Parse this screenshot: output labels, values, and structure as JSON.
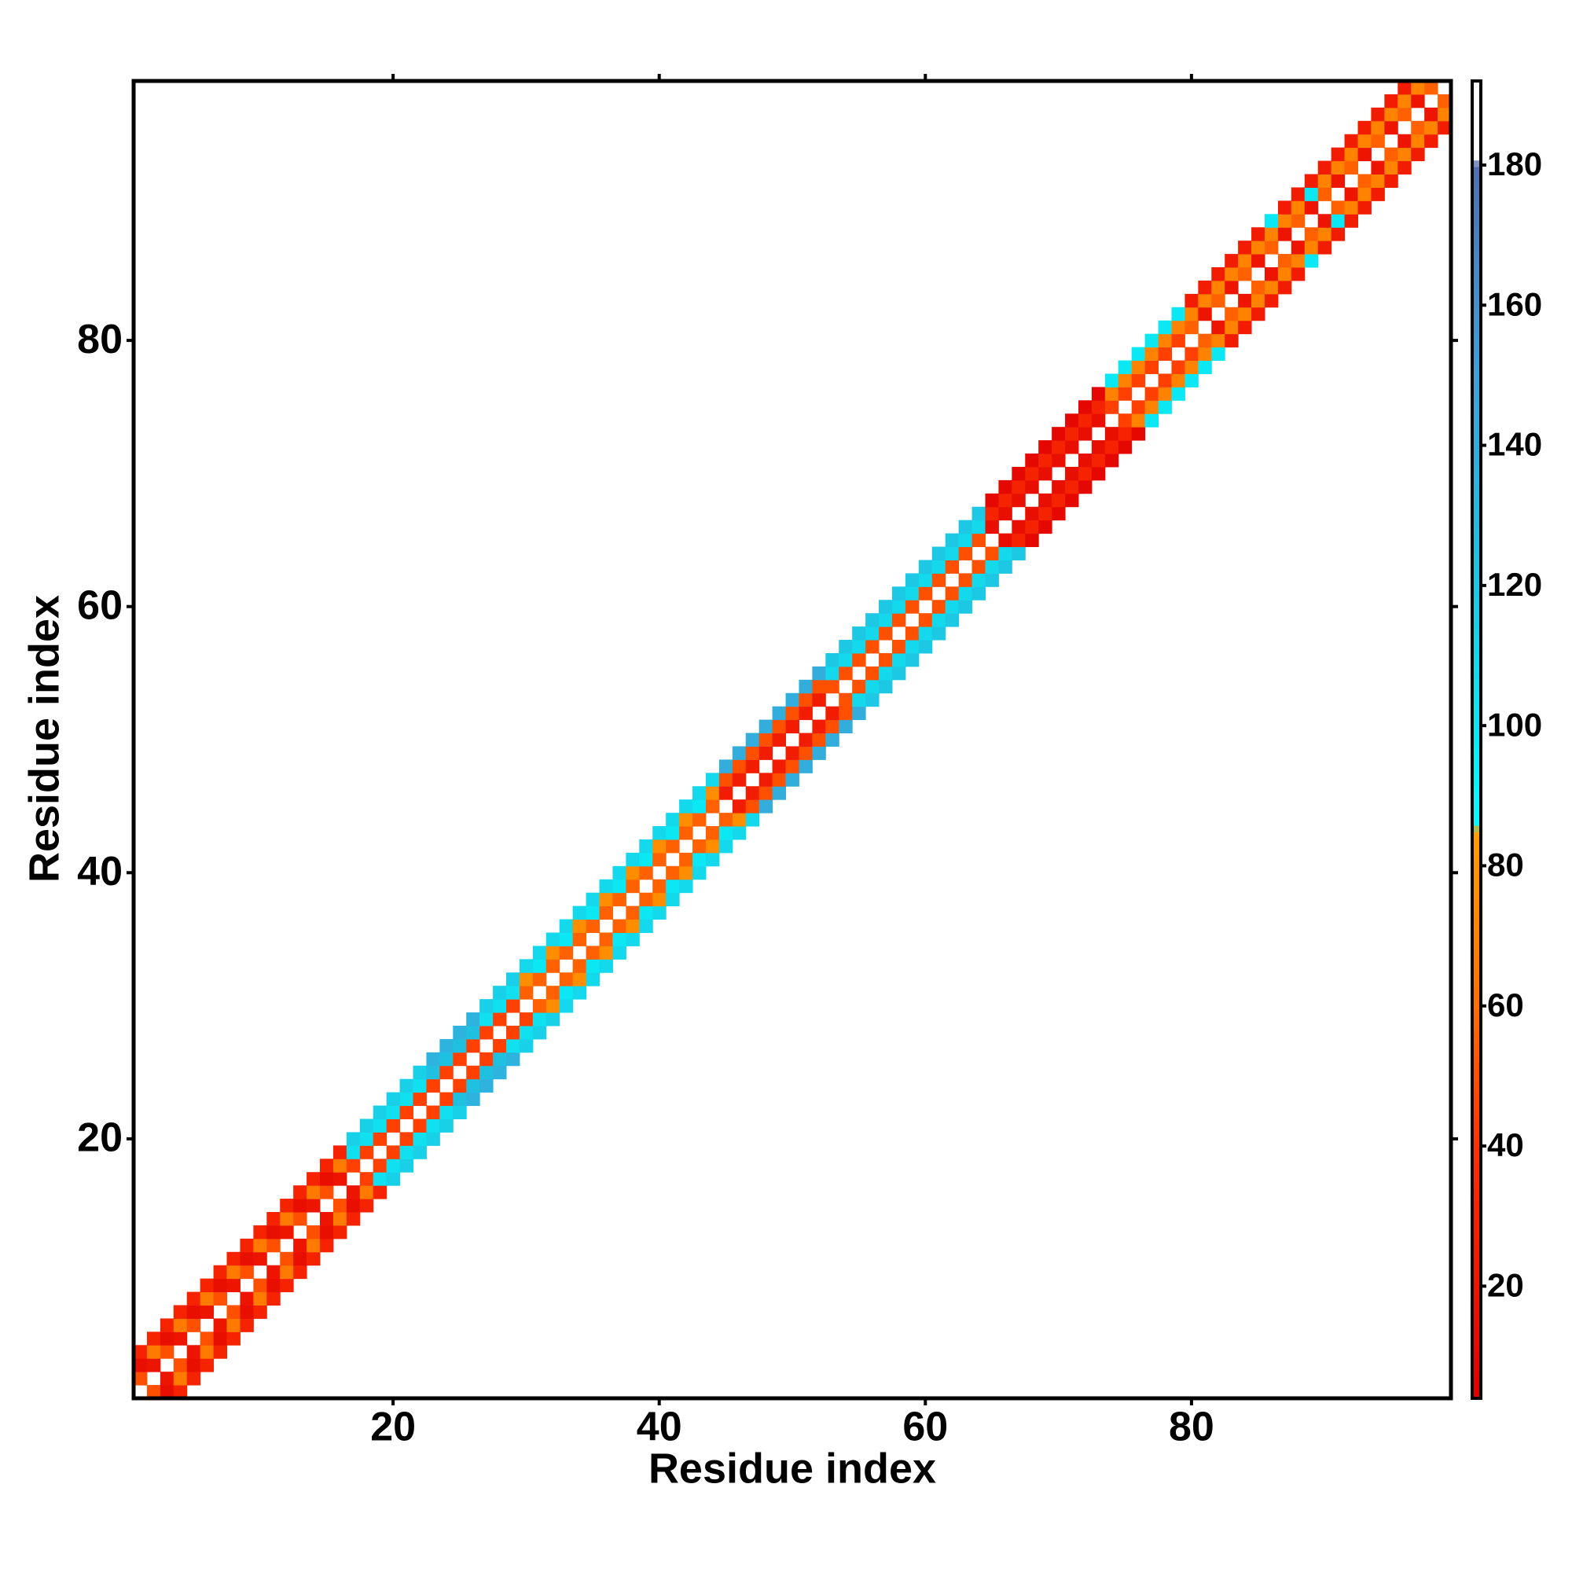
{
  "chart_data": {
    "type": "heatmap",
    "xlabel": "Residue index",
    "ylabel": "Residue index",
    "xlim": [
      0.5,
      99.5
    ],
    "ylim": [
      0.5,
      99.5
    ],
    "xticks": [
      20,
      40,
      60,
      80
    ],
    "yticks": [
      20,
      40,
      60,
      80
    ],
    "symmetric": true,
    "clim": [
      4,
      192
    ],
    "cticks": [
      20,
      40,
      60,
      80,
      100,
      120,
      140,
      160,
      180
    ],
    "colorscale": [
      [
        4,
        "#e00000"
      ],
      [
        40,
        "#ff3000"
      ],
      [
        60,
        "#ff7000"
      ],
      [
        85,
        "#ffa000"
      ],
      [
        86,
        "#00ffff"
      ],
      [
        125,
        "#20c0e0"
      ],
      [
        150,
        "#40a0d8"
      ],
      [
        180,
        "#5070b0"
      ],
      [
        181,
        "#ffffff"
      ],
      [
        192,
        "#ffffff"
      ]
    ],
    "cells": {
      "x": [
        1,
        1,
        1,
        2,
        2,
        2,
        3,
        3,
        3,
        4,
        4,
        4,
        5,
        5,
        5,
        6,
        6,
        6,
        7,
        7,
        7,
        8,
        8,
        8,
        9,
        9,
        9,
        10,
        10,
        10,
        11,
        11,
        11,
        12,
        12,
        12,
        13,
        13,
        13,
        14,
        14,
        14,
        15,
        15,
        15,
        16,
        16,
        16,
        17,
        17,
        17,
        18,
        18,
        18,
        19,
        19,
        19,
        20,
        20,
        20,
        21,
        21,
        21,
        22,
        22,
        22,
        23,
        23,
        23,
        24,
        24,
        24,
        25,
        25,
        25,
        26,
        26,
        26,
        27,
        27,
        27,
        28,
        28,
        28,
        29,
        29,
        29,
        30,
        30,
        30,
        31,
        31,
        31,
        32,
        32,
        32,
        33,
        33,
        33,
        34,
        34,
        34,
        35,
        35,
        35,
        36,
        36,
        36,
        37,
        37,
        37,
        38,
        38,
        38,
        39,
        39,
        39,
        40,
        40,
        40,
        41,
        41,
        41,
        42,
        42,
        42,
        43,
        43,
        43,
        44,
        44,
        44,
        45,
        45,
        45,
        46,
        46,
        46,
        47,
        47,
        47,
        48,
        48,
        48,
        49,
        49,
        49,
        50,
        50,
        50,
        51,
        51,
        51,
        52,
        52,
        52,
        53,
        53,
        53,
        54,
        54,
        54,
        55,
        55,
        55,
        56,
        56,
        56,
        57,
        57,
        57,
        58,
        58,
        58,
        59,
        59,
        59,
        60,
        60,
        60,
        61,
        61,
        61,
        62,
        62,
        62,
        63,
        63,
        63,
        64,
        64,
        64,
        65,
        65,
        65,
        66,
        66,
        66,
        67,
        67,
        67,
        68,
        68,
        68,
        69,
        69,
        69,
        70,
        70,
        70,
        71,
        71,
        71,
        72,
        72,
        72,
        73,
        73,
        73,
        74,
        74,
        74,
        75,
        75,
        75,
        76,
        76,
        76,
        77,
        77,
        77,
        78,
        78,
        78,
        79,
        79,
        79,
        80,
        80,
        80,
        81,
        81,
        81,
        82,
        82,
        82,
        83,
        83,
        83,
        84,
        84,
        84,
        85,
        85,
        85,
        86,
        86,
        86,
        87,
        87,
        87,
        88,
        88,
        88,
        89,
        89,
        89,
        90,
        90,
        90,
        91,
        91,
        91,
        92,
        92,
        92,
        93,
        93,
        93,
        94,
        94,
        94,
        95,
        95,
        95,
        96,
        96,
        96,
        97,
        97,
        98
      ],
      "y": [
        2,
        3,
        4,
        3,
        4,
        5,
        4,
        5,
        6,
        5,
        6,
        7,
        6,
        7,
        8,
        7,
        8,
        9,
        8,
        9,
        10,
        9,
        10,
        11,
        10,
        11,
        12,
        11,
        12,
        13,
        12,
        13,
        14,
        13,
        14,
        15,
        14,
        15,
        16,
        15,
        16,
        17,
        16,
        17,
        18,
        17,
        18,
        19,
        18,
        19,
        20,
        19,
        20,
        21,
        20,
        21,
        22,
        21,
        22,
        23,
        22,
        23,
        24,
        23,
        24,
        25,
        24,
        25,
        26,
        25,
        26,
        27,
        26,
        27,
        28,
        27,
        28,
        29,
        28,
        29,
        30,
        29,
        30,
        31,
        30,
        31,
        32,
        31,
        32,
        33,
        32,
        33,
        34,
        33,
        34,
        35,
        34,
        35,
        36,
        35,
        36,
        37,
        36,
        37,
        38,
        37,
        38,
        39,
        38,
        39,
        40,
        39,
        40,
        41,
        40,
        41,
        42,
        41,
        42,
        43,
        42,
        43,
        44,
        43,
        44,
        45,
        44,
        45,
        46,
        45,
        46,
        47,
        46,
        47,
        48,
        47,
        48,
        49,
        48,
        49,
        50,
        49,
        50,
        51,
        50,
        51,
        52,
        51,
        52,
        53,
        52,
        53,
        54,
        53,
        54,
        55,
        54,
        55,
        56,
        55,
        56,
        57,
        56,
        57,
        58,
        57,
        58,
        59,
        58,
        59,
        60,
        59,
        60,
        61,
        60,
        61,
        62,
        61,
        62,
        63,
        62,
        63,
        64,
        63,
        64,
        65,
        64,
        65,
        66,
        65,
        66,
        67,
        66,
        67,
        68,
        67,
        68,
        69,
        68,
        69,
        70,
        69,
        70,
        71,
        70,
        71,
        72,
        71,
        72,
        73,
        72,
        73,
        74,
        73,
        74,
        75,
        74,
        75,
        76,
        75,
        76,
        77,
        76,
        77,
        78,
        77,
        78,
        79,
        78,
        79,
        80,
        79,
        80,
        81,
        80,
        81,
        82,
        81,
        82,
        83,
        82,
        83,
        84,
        83,
        84,
        85,
        84,
        85,
        86,
        85,
        86,
        87,
        86,
        87,
        88,
        87,
        88,
        89,
        88,
        89,
        90,
        89,
        90,
        91,
        90,
        91,
        92,
        91,
        92,
        93,
        92,
        93,
        94,
        93,
        94,
        95,
        94,
        95,
        96,
        95,
        96,
        97,
        96,
        97,
        98,
        97,
        98,
        99,
        98,
        99,
        99
      ],
      "values": [
        50,
        15,
        30,
        20,
        65,
        30,
        50,
        15,
        30,
        20,
        65,
        30,
        50,
        15,
        30,
        20,
        65,
        30,
        50,
        15,
        30,
        20,
        65,
        30,
        50,
        15,
        30,
        20,
        65,
        30,
        50,
        15,
        30,
        20,
        65,
        30,
        50,
        15,
        30,
        20,
        65,
        30,
        50,
        15,
        30,
        20,
        65,
        30,
        45,
        105,
        115,
        45,
        105,
        115,
        45,
        105,
        115,
        45,
        105,
        115,
        45,
        105,
        115,
        45,
        105,
        115,
        45,
        125,
        135,
        45,
        125,
        135,
        45,
        125,
        135,
        45,
        125,
        135,
        45,
        105,
        115,
        45,
        105,
        115,
        45,
        105,
        115,
        55,
        75,
        110,
        55,
        100,
        110,
        55,
        75,
        110,
        55,
        100,
        110,
        55,
        75,
        110,
        55,
        100,
        110,
        55,
        75,
        110,
        55,
        100,
        110,
        55,
        75,
        110,
        55,
        100,
        110,
        55,
        75,
        110,
        55,
        100,
        110,
        55,
        75,
        110,
        55,
        100,
        110,
        55,
        75,
        110,
        25,
        50,
        140,
        25,
        50,
        140,
        25,
        50,
        140,
        25,
        50,
        140,
        25,
        50,
        140,
        25,
        50,
        140,
        25,
        50,
        140,
        25,
        50,
        140,
        50,
        110,
        120,
        50,
        110,
        120,
        50,
        110,
        120,
        50,
        110,
        120,
        50,
        110,
        120,
        50,
        110,
        120,
        50,
        110,
        120,
        50,
        110,
        120,
        50,
        110,
        120,
        50,
        110,
        120,
        50,
        110,
        120,
        50,
        110,
        120,
        15,
        30,
        10,
        15,
        30,
        10,
        15,
        30,
        10,
        15,
        30,
        10,
        15,
        30,
        10,
        15,
        30,
        10,
        15,
        30,
        10,
        15,
        30,
        10,
        15,
        30,
        10,
        45,
        70,
        100,
        45,
        70,
        100,
        45,
        70,
        100,
        45,
        70,
        100,
        45,
        70,
        100,
        45,
        70,
        100,
        55,
        70,
        25,
        20,
        70,
        25,
        55,
        70,
        25,
        20,
        70,
        25,
        55,
        70,
        25,
        20,
        70,
        25,
        55,
        70,
        100,
        20,
        70,
        25,
        55,
        70,
        25,
        20,
        100,
        25,
        55,
        70,
        25,
        20,
        70,
        25,
        55,
        70,
        25,
        20,
        70,
        25,
        55,
        70,
        25,
        20,
        70,
        25,
        55,
        70,
        25,
        20,
        70,
        55
      ]
    }
  }
}
